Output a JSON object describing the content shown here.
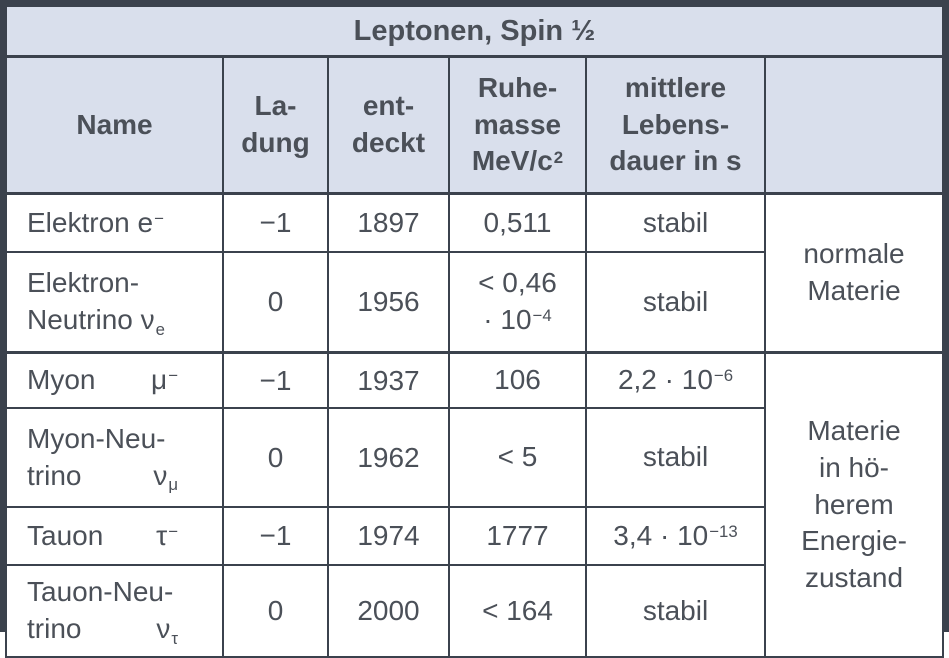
{
  "title": "Leptonen, Spin ½",
  "colors": {
    "header_bg": "#d9dfec",
    "body_bg": "#ffffff",
    "border": "#3b424d",
    "text": "#4b5058"
  },
  "header": {
    "name": [
      [
        {
          "t": "Name"
        }
      ]
    ],
    "charge": [
      [
        {
          "t": "La-"
        }
      ],
      [
        {
          "t": "dung"
        }
      ]
    ],
    "discovered": [
      [
        {
          "t": "ent-"
        }
      ],
      [
        {
          "t": "deckt"
        }
      ]
    ],
    "mass": [
      [
        {
          "t": "Ruhe-"
        }
      ],
      [
        {
          "t": "masse"
        }
      ],
      [
        {
          "t": "MeV/c"
        },
        {
          "sup": "2"
        }
      ]
    ],
    "lifetime": [
      [
        {
          "t": "mittlere"
        }
      ],
      [
        {
          "t": "Lebens-"
        }
      ],
      [
        {
          "t": "dauer in s"
        }
      ]
    ],
    "matter": [
      []
    ]
  },
  "rows": [
    {
      "name": [
        [
          {
            "t": "Elektron e"
          },
          {
            "sup": "−"
          }
        ]
      ],
      "charge": "−1",
      "discovered": "1897",
      "mass": [
        [
          {
            "t": "0,511"
          }
        ]
      ],
      "lifetime": [
        [
          {
            "t": "stabil"
          }
        ]
      ],
      "matter": {
        "rowspan": 2,
        "lines": [
          [
            {
              "t": "normale"
            }
          ],
          [
            {
              "t": "Materie"
            }
          ]
        ]
      }
    },
    {
      "name": [
        [
          {
            "t": "Elektron-"
          }
        ],
        [
          {
            "t": "Neutrino ν"
          },
          {
            "sub": "e"
          }
        ]
      ],
      "charge": "0",
      "discovered": "1956",
      "mass": [
        [
          {
            "t": "< 0,46"
          }
        ],
        [
          {
            "t": "· 10"
          },
          {
            "sup": "−4"
          }
        ]
      ],
      "lifetime": [
        [
          {
            "t": "stabil"
          }
        ]
      ]
    },
    {
      "group_start": true,
      "name": [
        [
          {
            "t": "Myon"
          },
          {
            "g": 1
          },
          {
            "t": "μ"
          },
          {
            "sup": "−"
          }
        ]
      ],
      "charge": "−1",
      "discovered": "1937",
      "mass": [
        [
          {
            "t": "106"
          }
        ]
      ],
      "lifetime": [
        [
          {
            "t": "2,2 · 10"
          },
          {
            "sup": "−6"
          }
        ]
      ],
      "matter": {
        "rowspan": 4,
        "lines": [
          [
            {
              "t": "Materie"
            }
          ],
          [
            {
              "t": "in hö-"
            }
          ],
          [
            {
              "t": "herem"
            }
          ],
          [
            {
              "t": "Energie-"
            }
          ],
          [
            {
              "t": "zustand"
            }
          ]
        ]
      }
    },
    {
      "name": [
        [
          {
            "t": "Myon-Neu-"
          }
        ],
        [
          {
            "t": "trino"
          },
          {
            "g": 1
          },
          {
            "t": "ν"
          },
          {
            "sub": "μ"
          }
        ]
      ],
      "charge": "0",
      "discovered": "1962",
      "mass": [
        [
          {
            "t": "< 5"
          }
        ]
      ],
      "lifetime": [
        [
          {
            "t": "stabil"
          }
        ]
      ]
    },
    {
      "name": [
        [
          {
            "t": "Tauon"
          },
          {
            "g": 1
          },
          {
            "t": "τ"
          },
          {
            "sup": "−"
          }
        ]
      ],
      "charge": "−1",
      "discovered": "1974",
      "mass": [
        [
          {
            "t": "1777"
          }
        ]
      ],
      "lifetime": [
        [
          {
            "t": "3,4 · 10"
          },
          {
            "sup": "−13"
          }
        ]
      ]
    },
    {
      "name": [
        [
          {
            "t": "Tauon-Neu-"
          }
        ],
        [
          {
            "t": "trino"
          },
          {
            "g": 1
          },
          {
            "t": "ν"
          },
          {
            "sub": "τ"
          }
        ]
      ],
      "charge": "0",
      "discovered": "2000",
      "mass": [
        [
          {
            "t": "< 164"
          }
        ]
      ],
      "lifetime": [
        [
          {
            "t": "stabil"
          }
        ]
      ]
    }
  ]
}
